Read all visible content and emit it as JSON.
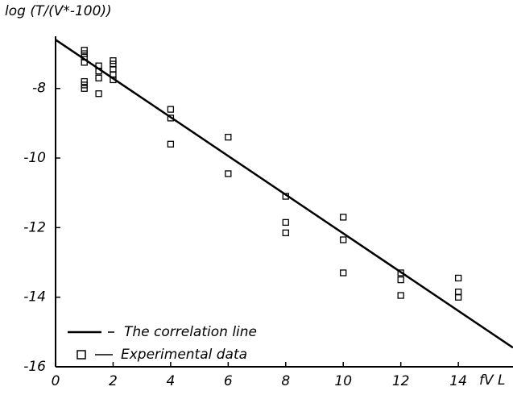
{
  "chart_data": {
    "type": "scatter",
    "y_label": "log (T/(V*-100))",
    "x_label": "fV L",
    "xlim": [
      0,
      15.9
    ],
    "xticks": [
      0,
      2,
      4,
      6,
      8,
      10,
      12,
      14
    ],
    "ylim": [
      -16,
      -6.5
    ],
    "yticks": [
      -16,
      -14,
      -12,
      -10,
      -8
    ],
    "legend": "lower left",
    "series": [
      {
        "name": "The correlation line",
        "type": "line",
        "color": "#000000",
        "x": [
          0,
          15.9
        ],
        "values": [
          -6.6,
          -15.45
        ]
      },
      {
        "name": "Experimental data",
        "type": "scatter",
        "color": "#000000",
        "x": [
          1,
          1,
          1,
          1,
          1,
          1,
          1,
          1.5,
          1.5,
          1.5,
          1.5,
          2,
          2,
          2,
          2,
          2,
          4,
          4,
          4,
          6,
          6,
          8,
          8,
          8,
          10,
          10,
          10,
          12,
          12,
          12,
          14,
          14,
          14
        ],
        "values": [
          -6.9,
          -7.0,
          -7.1,
          -7.25,
          -7.8,
          -7.9,
          -8.0,
          -7.35,
          -7.5,
          -7.7,
          -8.15,
          -7.2,
          -7.3,
          -7.45,
          -7.6,
          -7.75,
          -8.6,
          -8.85,
          -9.6,
          -9.4,
          -10.45,
          -11.1,
          -11.85,
          -12.15,
          -11.7,
          -12.35,
          -13.3,
          -13.3,
          -13.5,
          -13.95,
          -13.45,
          -13.85,
          -14.0
        ]
      }
    ]
  }
}
